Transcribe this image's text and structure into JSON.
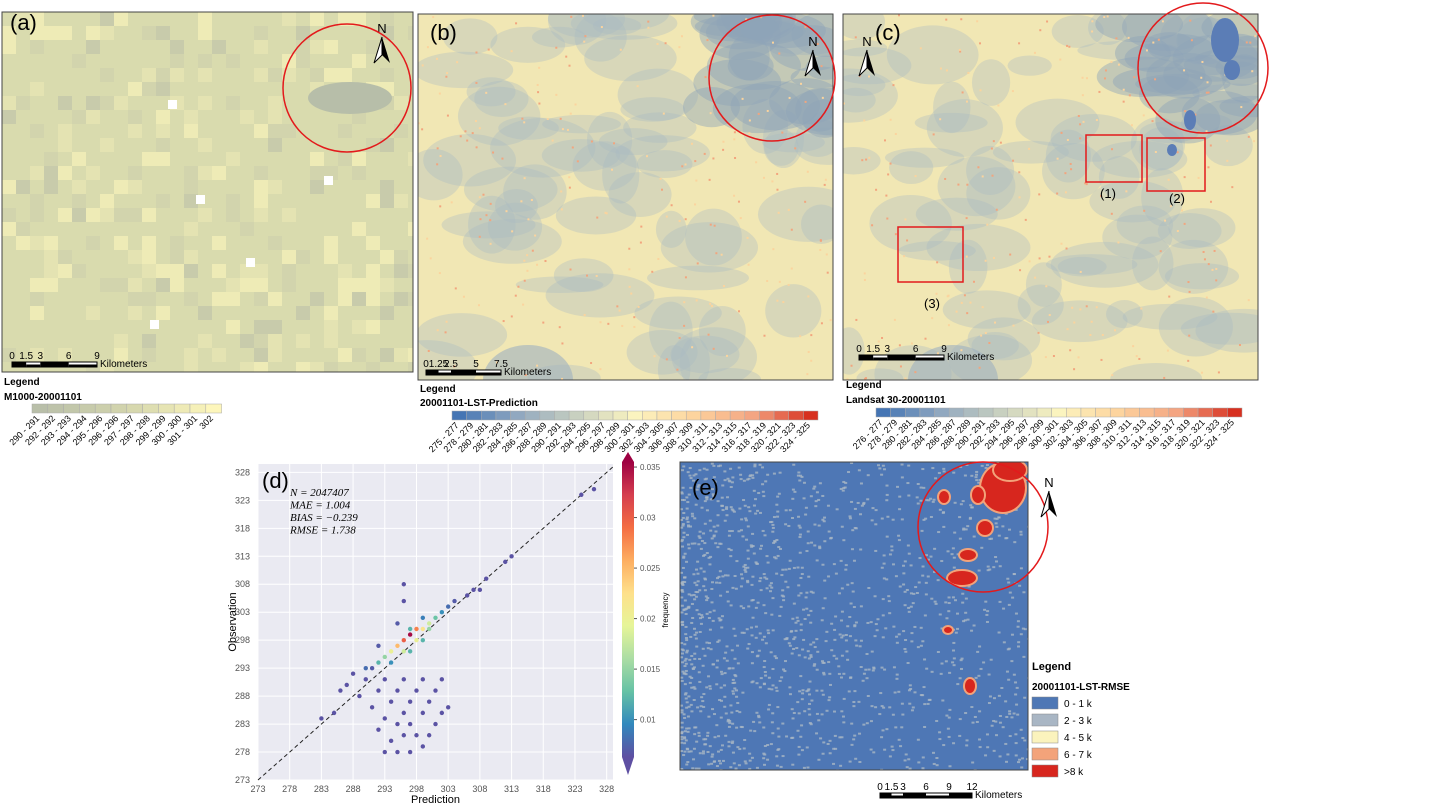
{
  "panels": [
    {
      "label": "(a)",
      "north": "N",
      "legend_heading": "Legend",
      "legend_title": "M1000-20001101",
      "classes": [
        "290 - 291",
        "292 - 292",
        "293 - 293",
        "294 - 294",
        "295 - 296",
        "296 - 296",
        "297 - 297",
        "298 - 298",
        "299 - 299",
        "300 - 300",
        "301 - 301",
        "302"
      ],
      "ramp": [
        "#b9bfa9",
        "#d3d5ad",
        "#fdf6bb"
      ],
      "scale": [
        "0",
        "1.5",
        "3",
        "6",
        "9"
      ],
      "scale_unit": "Kilometers"
    },
    {
      "label": "(b)",
      "north": "N",
      "legend_heading": "Legend",
      "legend_title": "20001101-LST-Prediction",
      "classes": [
        "275 - 277",
        "278 - 279",
        "280 - 281",
        "282 - 283",
        "284 - 285",
        "286 - 287",
        "288 - 289",
        "290 - 291",
        "292 - 293",
        "294 - 295",
        "296 - 297",
        "298 - 299",
        "300 - 301",
        "302 - 303",
        "304 - 305",
        "306 - 307",
        "308 - 309",
        "310 - 311",
        "312 - 313",
        "314 - 315",
        "316 - 317",
        "318 - 319",
        "320 - 321",
        "322 - 323",
        "324 - 325"
      ],
      "ramp": [
        "#4575b4",
        "#91a8c0",
        "#c8d0c0",
        "#fbf4bf",
        "#fdd49e",
        "#f4a582",
        "#d7301f"
      ],
      "scale": [
        "0",
        "1.25",
        "2.5",
        "5",
        "7.5"
      ],
      "scale_unit": "Kilometers"
    },
    {
      "label": "(c)",
      "north": "N",
      "legend_heading": "Legend",
      "legend_title": "Landsat 30-20001101",
      "classes": [
        "276 - 277",
        "278 - 279",
        "280 - 281",
        "282 - 283",
        "284 - 285",
        "286 - 287",
        "288 - 289",
        "290 - 291",
        "292 - 293",
        "294 - 295",
        "296 - 297",
        "298 - 299",
        "300 - 301",
        "302 - 303",
        "304 - 305",
        "306 - 307",
        "308 - 309",
        "310 - 311",
        "312 - 313",
        "314 - 315",
        "316 - 317",
        "318 - 319",
        "320 - 321",
        "322 - 323",
        "324 - 325"
      ],
      "ramp": [
        "#4575b4",
        "#91a8c0",
        "#c8d0c0",
        "#fbf4bf",
        "#fdd49e",
        "#f4a582",
        "#d7301f"
      ],
      "scale": [
        "0",
        "1.5",
        "3",
        "6",
        "9"
      ],
      "scale_unit": "Kilometers",
      "boxes": [
        "(1)",
        "(2)",
        "(3)"
      ]
    }
  ],
  "chart_data": {
    "type": "scatter",
    "panel_label": "(d)",
    "x_label": "Prediction",
    "y_label": "Observation",
    "annotations": [
      "N = 2047407",
      "MAE = 1.004",
      "BIAS = −0.239",
      "RMSE = 1.738"
    ],
    "x": [
      293,
      295,
      297,
      299,
      294,
      296,
      298,
      300,
      292,
      295,
      297,
      301,
      293,
      296,
      299,
      302,
      291,
      294,
      297,
      300,
      303,
      289,
      292,
      295,
      298,
      301,
      287,
      290,
      293,
      296,
      299,
      302,
      286,
      288,
      290,
      292,
      293,
      294,
      295,
      296,
      297,
      298,
      299,
      300,
      301,
      302,
      303,
      304,
      306,
      307,
      308,
      309,
      294,
      296,
      298,
      300,
      297,
      299,
      292,
      295,
      296,
      296,
      291,
      297,
      299,
      312,
      313,
      324,
      326,
      285,
      283
    ],
    "y": [
      278,
      278,
      278,
      279,
      280,
      281,
      281,
      281,
      282,
      283,
      283,
      283,
      284,
      285,
      285,
      285,
      286,
      287,
      287,
      287,
      286,
      288,
      289,
      289,
      289,
      289,
      290,
      291,
      291,
      291,
      291,
      291,
      289,
      292,
      293,
      294,
      295,
      296,
      297,
      298,
      299,
      300,
      300,
      301,
      302,
      303,
      304,
      305,
      306,
      307,
      307,
      309,
      294,
      296,
      298,
      300,
      300,
      302,
      297,
      301,
      305,
      308,
      293,
      296,
      298,
      312,
      313,
      324,
      325,
      285,
      284
    ],
    "c": [
      0.0065,
      0.0065,
      0.0065,
      0.0065,
      0.0065,
      0.0065,
      0.0065,
      0.0065,
      0.0065,
      0.0065,
      0.0065,
      0.0065,
      0.0065,
      0.0065,
      0.0065,
      0.0065,
      0.0065,
      0.0065,
      0.0065,
      0.0065,
      0.0065,
      0.0065,
      0.0065,
      0.0065,
      0.0065,
      0.0065,
      0.0065,
      0.0065,
      0.0065,
      0.0065,
      0.0065,
      0.0065,
      0.0065,
      0.0065,
      0.008,
      0.012,
      0.015,
      0.02,
      0.025,
      0.03,
      0.035,
      0.028,
      0.022,
      0.018,
      0.013,
      0.01,
      0.008,
      0.007,
      0.0065,
      0.0065,
      0.0065,
      0.0065,
      0.01,
      0.018,
      0.02,
      0.015,
      0.012,
      0.009,
      0.007,
      0.007,
      0.0065,
      0.0065,
      0.007,
      0.012,
      0.012,
      0.0065,
      0.0065,
      0.0065,
      0.0065,
      0.0065,
      0.0065
    ],
    "xlim": [
      273,
      329
    ],
    "ylim": [
      273,
      329.5
    ],
    "xticks": [
      273,
      278,
      283,
      288,
      293,
      298,
      303,
      308,
      313,
      318,
      323,
      328
    ],
    "yticks": [
      273,
      278,
      283,
      288,
      293,
      298,
      303,
      308,
      313,
      318,
      323,
      328
    ],
    "grid": true,
    "colorbar": {
      "label": "frequency",
      "lim": [
        0.0063,
        0.0355
      ],
      "ticks": [
        0.01,
        0.015,
        0.02,
        0.025,
        0.03,
        0.035
      ],
      "colors": [
        "#5e4fa2",
        "#3288bd",
        "#66c2a5",
        "#abdda4",
        "#e6f598",
        "#fee08b",
        "#fdae61",
        "#f46d43",
        "#d53e4f",
        "#9e0142"
      ]
    }
  },
  "rmse_map": {
    "label": "(e)",
    "north": "N",
    "legend_heading": "Legend",
    "legend_title": "20001101-LST-RMSE",
    "classes": [
      {
        "label": "0 - 1 k",
        "color": "#4e77b5"
      },
      {
        "label": "2 - 3 k",
        "color": "#a9b6c4"
      },
      {
        "label": "4 - 5 k",
        "color": "#fbf3bd"
      },
      {
        "label": "6 - 7 k",
        "color": "#f3a37a"
      },
      {
        "label": ">8 k",
        "color": "#d7261e"
      }
    ],
    "scale": [
      "0",
      "1.5",
      "3",
      "6",
      "9",
      "12"
    ],
    "scale_unit": "Kilometers"
  }
}
